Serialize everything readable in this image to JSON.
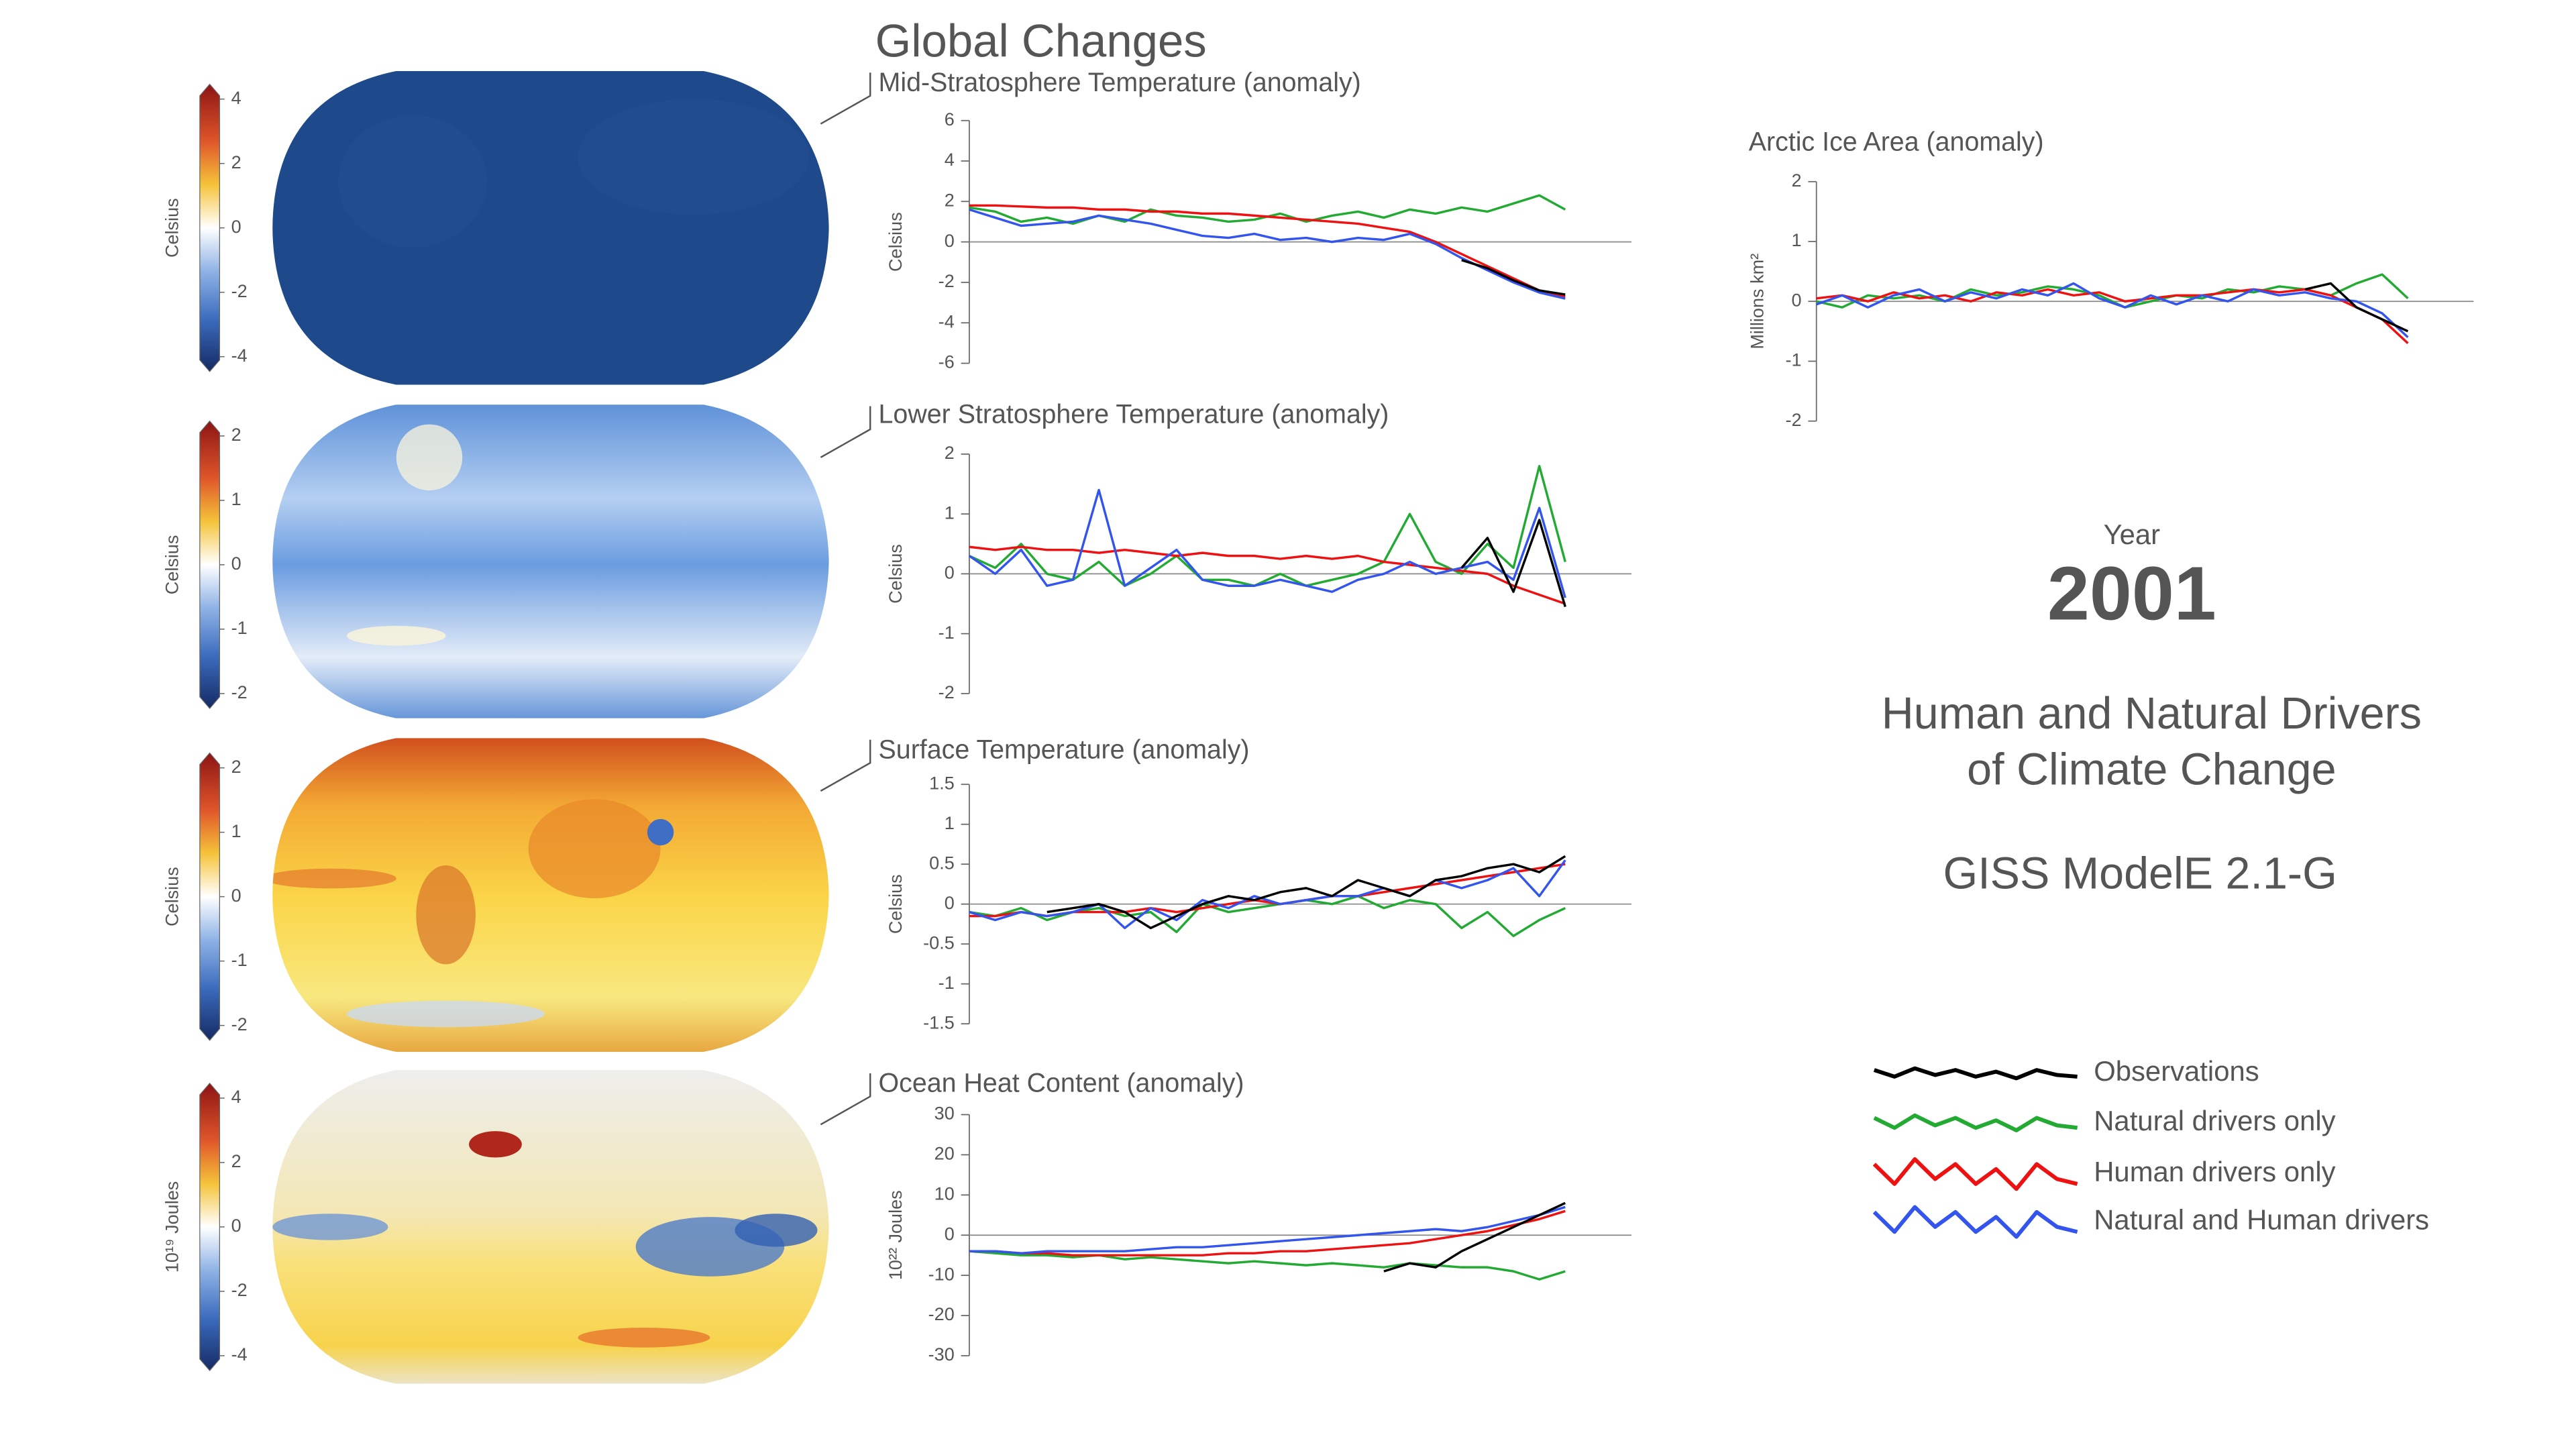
{
  "title": "Global Changes",
  "colorbars": [
    {
      "label": "Celsius",
      "lim": [
        -4,
        4
      ],
      "ticks": [
        -4,
        -2,
        0,
        2,
        4
      ]
    },
    {
      "label": "Celsius",
      "lim": [
        -2,
        2
      ],
      "ticks": [
        -2,
        -1,
        0,
        1,
        2
      ]
    },
    {
      "label": "Celsius",
      "lim": [
        -2,
        2
      ],
      "ticks": [
        -2,
        -1,
        0,
        1,
        2
      ]
    },
    {
      "label": "10¹⁹ Joules",
      "lim": [
        -4,
        4
      ],
      "ticks": [
        -4,
        -2,
        0,
        2,
        4
      ]
    }
  ],
  "chart_data": [
    {
      "type": "line",
      "title": "Mid-Stratosphere Temperature (anomaly)",
      "ylabel": "Celsius",
      "ylim": [
        -6,
        6
      ],
      "yticks": [
        -6,
        -4,
        -2,
        0,
        2,
        4,
        6
      ],
      "series": [
        {
          "name": "Observations",
          "color": "#000000",
          "values": [
            null,
            null,
            null,
            null,
            null,
            null,
            null,
            null,
            null,
            null,
            null,
            null,
            null,
            null,
            null,
            null,
            null,
            null,
            null,
            -0.9,
            -1.3,
            -1.9,
            -2.4,
            -2.6
          ]
        },
        {
          "name": "Natural drivers only",
          "color": "#22aa33",
          "values": [
            1.7,
            1.5,
            1.0,
            1.2,
            0.9,
            1.3,
            1.0,
            1.6,
            1.3,
            1.2,
            1.0,
            1.1,
            1.4,
            1.0,
            1.3,
            1.5,
            1.2,
            1.6,
            1.4,
            1.7,
            1.5,
            1.9,
            2.3,
            1.6
          ]
        },
        {
          "name": "Human drivers only",
          "color": "#ee1111",
          "values": [
            1.8,
            1.8,
            1.75,
            1.7,
            1.7,
            1.6,
            1.6,
            1.5,
            1.5,
            1.4,
            1.4,
            1.3,
            1.2,
            1.1,
            1.0,
            0.9,
            0.7,
            0.5,
            0,
            -0.6,
            -1.2,
            -1.8,
            -2.4,
            -2.7
          ]
        },
        {
          "name": "Natural and Human drivers",
          "color": "#3355ee",
          "values": [
            1.6,
            1.2,
            0.8,
            0.9,
            1.0,
            1.3,
            1.1,
            0.9,
            0.6,
            0.3,
            0.2,
            0.4,
            0.1,
            0.2,
            0.0,
            0.2,
            0.1,
            0.4,
            -0.1,
            -0.8,
            -1.4,
            -2.0,
            -2.5,
            -2.8
          ]
        }
      ]
    },
    {
      "type": "line",
      "title": "Lower Stratosphere Temperature (anomaly)",
      "ylabel": "Celsius",
      "ylim": [
        -2,
        2
      ],
      "yticks": [
        -2,
        -1,
        0,
        1,
        2
      ],
      "series": [
        {
          "color": "#000000",
          "values": [
            null,
            null,
            null,
            null,
            null,
            null,
            null,
            null,
            null,
            null,
            null,
            null,
            null,
            null,
            null,
            null,
            null,
            null,
            null,
            0.1,
            0.6,
            -0.3,
            0.9,
            -0.55
          ]
        },
        {
          "color": "#22aa33",
          "values": [
            0.3,
            0.1,
            0.5,
            0.0,
            -0.1,
            0.2,
            -0.2,
            0.0,
            0.3,
            -0.1,
            -0.1,
            -0.2,
            0.0,
            -0.2,
            -0.1,
            0.0,
            0.2,
            1.0,
            0.2,
            0.0,
            0.5,
            0.1,
            1.8,
            0.2
          ]
        },
        {
          "color": "#ee1111",
          "values": [
            0.45,
            0.4,
            0.45,
            0.4,
            0.4,
            0.35,
            0.4,
            0.35,
            0.3,
            0.35,
            0.3,
            0.3,
            0.25,
            0.3,
            0.25,
            0.3,
            0.2,
            0.15,
            0.1,
            0.05,
            0,
            -0.2,
            -0.35,
            -0.5
          ]
        },
        {
          "color": "#3355ee",
          "values": [
            0.3,
            0.0,
            0.4,
            -0.2,
            -0.1,
            1.4,
            -0.2,
            0.1,
            0.4,
            -0.1,
            -0.2,
            -0.2,
            -0.1,
            -0.2,
            -0.3,
            -0.1,
            0.0,
            0.2,
            0.0,
            0.1,
            0.2,
            -0.1,
            1.1,
            -0.4
          ]
        }
      ]
    },
    {
      "type": "line",
      "title": "Surface Temperature (anomaly)",
      "ylabel": "Celsius",
      "ylim": [
        -1.5,
        1.5
      ],
      "yticks": [
        -1.5,
        -1,
        -0.5,
        0,
        0.5,
        1,
        1.5
      ],
      "series": [
        {
          "color": "#000000",
          "values": [
            null,
            null,
            null,
            -0.1,
            -0.05,
            0,
            -0.1,
            -0.3,
            -0.15,
            0,
            0.1,
            0.05,
            0.15,
            0.2,
            0.1,
            0.3,
            0.2,
            0.1,
            0.3,
            0.35,
            0.45,
            0.5,
            0.4,
            0.6
          ]
        },
        {
          "color": "#22aa33",
          "values": [
            -0.1,
            -0.15,
            -0.05,
            -0.2,
            -0.1,
            -0.05,
            -0.15,
            -0.1,
            -0.35,
            0,
            -0.1,
            -0.05,
            0,
            0.05,
            0,
            0.1,
            -0.05,
            0.05,
            0,
            -0.3,
            -0.1,
            -0.4,
            -0.2,
            -0.05
          ]
        },
        {
          "color": "#ee1111",
          "values": [
            -0.15,
            -0.15,
            -0.1,
            -0.15,
            -0.1,
            -0.1,
            -0.1,
            -0.05,
            -0.1,
            -0.05,
            0,
            0.05,
            0,
            0.05,
            0.1,
            0.1,
            0.15,
            0.2,
            0.25,
            0.3,
            0.35,
            0.4,
            0.45,
            0.5
          ]
        },
        {
          "color": "#3355ee",
          "values": [
            -0.1,
            -0.2,
            -0.1,
            -0.15,
            -0.1,
            0,
            -0.3,
            -0.05,
            -0.2,
            0.05,
            -0.05,
            0.1,
            0,
            0.05,
            0.1,
            0.1,
            0.2,
            0.1,
            0.3,
            0.2,
            0.3,
            0.45,
            0.1,
            0.55
          ]
        }
      ]
    },
    {
      "type": "line",
      "title": "Ocean Heat Content (anomaly)",
      "ylabel": "10²² Joules",
      "ylim": [
        -30,
        30
      ],
      "yticks": [
        -30,
        -20,
        -10,
        0,
        10,
        20,
        30
      ],
      "series": [
        {
          "color": "#000000",
          "values": [
            null,
            null,
            null,
            null,
            null,
            null,
            null,
            null,
            null,
            null,
            null,
            null,
            null,
            null,
            null,
            null,
            -9,
            -7,
            -8,
            -4,
            -1,
            2,
            5,
            8
          ]
        },
        {
          "color": "#22aa33",
          "values": [
            -4,
            -4.5,
            -5,
            -5,
            -5.5,
            -5,
            -6,
            -5.5,
            -6,
            -6.5,
            -7,
            -6.5,
            -7,
            -7.5,
            -7,
            -7.5,
            -8,
            -7,
            -7.5,
            -8,
            -8,
            -9,
            -11,
            -9
          ]
        },
        {
          "color": "#ee1111",
          "values": [
            -4,
            -4,
            -4.5,
            -4.5,
            -5,
            -5,
            -5,
            -5,
            -5,
            -5,
            -4.5,
            -4.5,
            -4,
            -4,
            -3.5,
            -3,
            -2.5,
            -2,
            -1,
            0,
            1,
            2.5,
            4,
            6
          ]
        },
        {
          "color": "#3355ee",
          "values": [
            -4,
            -4,
            -4.5,
            -4,
            -4,
            -4,
            -4,
            -3.5,
            -3,
            -3,
            -2.5,
            -2,
            -1.5,
            -1,
            -0.5,
            0,
            0.5,
            1,
            1.5,
            1,
            2,
            3.5,
            5,
            7
          ]
        }
      ]
    },
    {
      "type": "line",
      "title": "Arctic Ice Area (anomaly)",
      "ylabel": "Millions km²",
      "ylim": [
        -2,
        2
      ],
      "yticks": [
        -2,
        -1,
        0,
        1,
        2
      ],
      "series": [
        {
          "color": "#000000",
          "values": [
            null,
            null,
            null,
            null,
            null,
            null,
            null,
            null,
            null,
            null,
            null,
            null,
            null,
            null,
            null,
            null,
            null,
            null,
            null,
            0.2,
            0.3,
            -0.1,
            -0.3,
            -0.5
          ]
        },
        {
          "color": "#22aa33",
          "values": [
            0,
            -0.1,
            0.1,
            0.05,
            0.1,
            0,
            0.2,
            0.1,
            0.15,
            0.25,
            0.2,
            0.1,
            -0.1,
            0,
            0.1,
            0.05,
            0.2,
            0.15,
            0.25,
            0.2,
            0.1,
            0.3,
            0.45,
            0.05
          ]
        },
        {
          "color": "#ee1111",
          "values": [
            0.05,
            0.1,
            0,
            0.15,
            0.05,
            0.1,
            0,
            0.15,
            0.1,
            0.2,
            0.1,
            0.15,
            0,
            0.05,
            0.1,
            0.1,
            0.15,
            0.2,
            0.15,
            0.2,
            0.1,
            -0.1,
            -0.3,
            -0.7
          ]
        },
        {
          "color": "#3355ee",
          "values": [
            -0.05,
            0.1,
            -0.1,
            0.1,
            0.2,
            0,
            0.15,
            0.05,
            0.2,
            0.1,
            0.3,
            0.05,
            -0.1,
            0.1,
            -0.05,
            0.1,
            0,
            0.2,
            0.1,
            0.15,
            0.05,
            0,
            -0.2,
            -0.6
          ]
        }
      ]
    }
  ],
  "year_label": "Year",
  "year": 2001,
  "headline": [
    "Human and Natural Drivers",
    "of Climate Change"
  ],
  "model": "GISS ModelE 2.1-G"
}
